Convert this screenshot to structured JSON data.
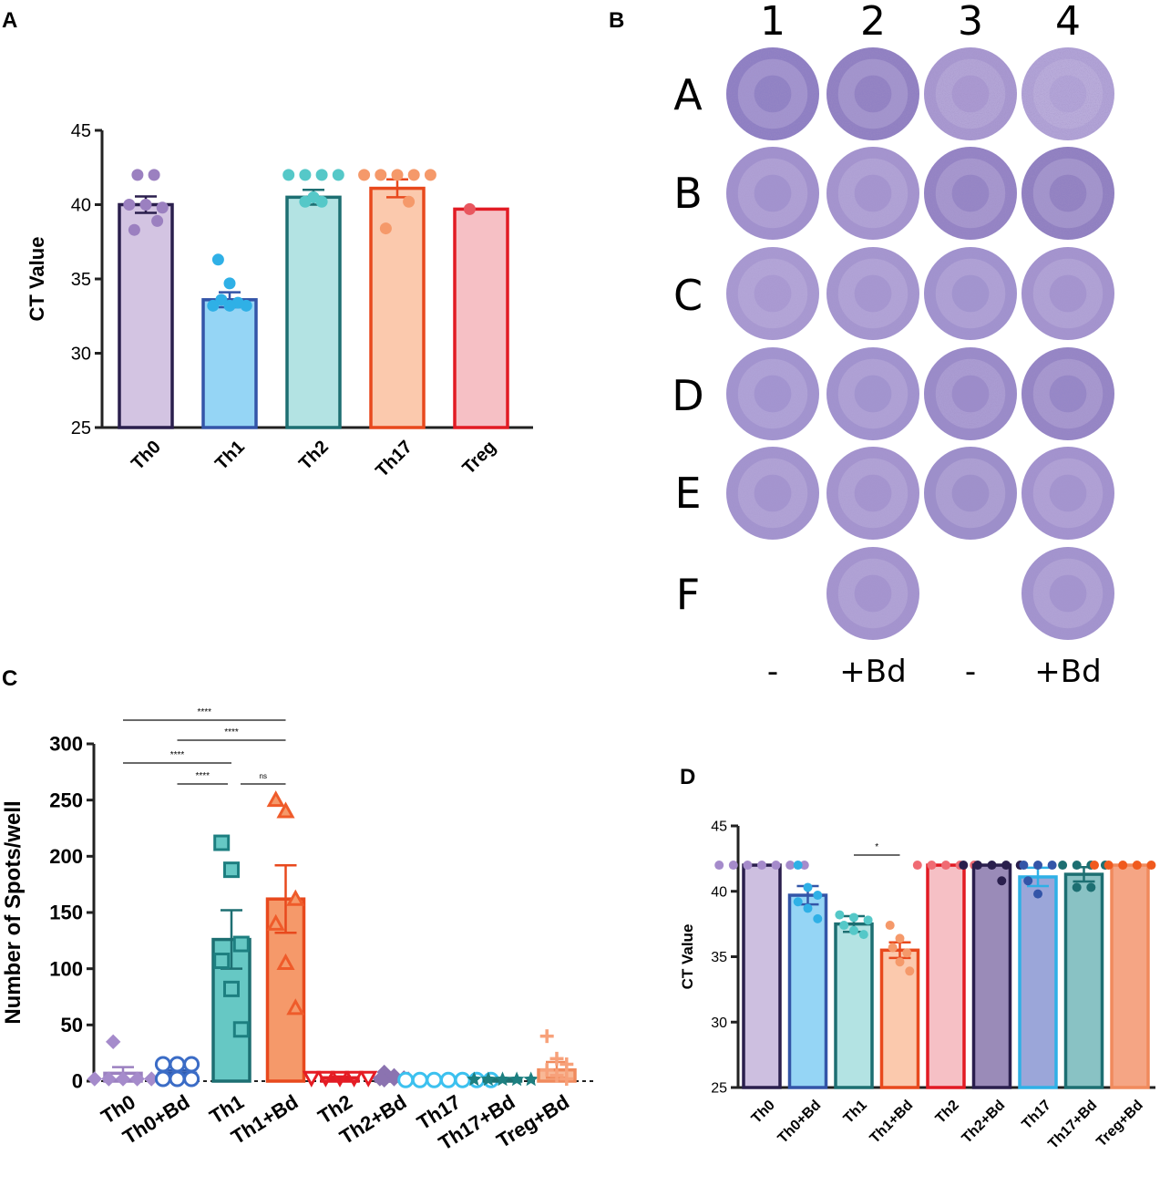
{
  "panels": {
    "A": "A",
    "B": "B",
    "C": "C",
    "D": "D"
  },
  "colors": {
    "axis": "#222222",
    "well_fill": "#9b8cc9"
  },
  "chart_data": [
    {
      "id": "A",
      "type": "bar",
      "ylabel": "CT Value",
      "ylim": [
        25,
        45
      ],
      "yticks": [
        25,
        30,
        35,
        40,
        45
      ],
      "categories": [
        "Th0",
        "Th1",
        "Th2",
        "Th17",
        "Treg"
      ],
      "values": [
        40.0,
        33.6,
        40.5,
        41.1,
        39.7
      ],
      "sem": [
        0.55,
        0.5,
        0.5,
        0.6,
        0
      ],
      "fills": [
        "#d3c4e2",
        "#95d5f5",
        "#b3e3e3",
        "#fbc9ad",
        "#f6c0c5"
      ],
      "strokes": [
        "#2a1f4d",
        "#3355a8",
        "#1d6f72",
        "#e8491d",
        "#e21b24"
      ],
      "point_colors": [
        "#9b80c0",
        "#2fb0e6",
        "#55c8c8",
        "#f5996a",
        "#e8575f"
      ],
      "points": [
        [
          42,
          42,
          40,
          40,
          39.8,
          38.9,
          38.3
        ],
        [
          36.3,
          34.7,
          33.6,
          33.4,
          33.2,
          33.2,
          33.2
        ],
        [
          42,
          42,
          42,
          42,
          40.5,
          40.2,
          40.2
        ],
        [
          42,
          42,
          42,
          42,
          42,
          40.2,
          38.4
        ],
        [
          39.7
        ]
      ]
    },
    {
      "id": "C",
      "type": "bar",
      "ylabel": "Number of Spots/well",
      "ylim": [
        0,
        300
      ],
      "yticks": [
        0,
        50,
        100,
        150,
        200,
        250,
        300
      ],
      "categories": [
        "Th0",
        "Th0+Bd",
        "Th1",
        "Th1+Bd",
        "Th2",
        "Th2+Bd",
        "Th17",
        "Th17+Bd",
        "Treg+Bd"
      ],
      "values": [
        7,
        7,
        126,
        162,
        3,
        3,
        1,
        1.5,
        10
      ],
      "sem": [
        5.5,
        2.5,
        26,
        30,
        1.2,
        1.5,
        0.5,
        0.6,
        7
      ],
      "fills": [
        "#ffffff",
        "#ffffff",
        "#66c8c4",
        "#f5996a",
        "#ffffff",
        "#ffffff",
        "#ffffff",
        "#ffffff",
        "#f8b896"
      ],
      "strokes": [
        "#9b80c0",
        "#2e5ab0",
        "#1d6f72",
        "#e8491d",
        "#e21b24",
        "#6a5a8c",
        "#2fb0e6",
        "#1d7272",
        "#f08a5d"
      ],
      "markers": [
        "diamond",
        "circle",
        "square",
        "triangle",
        "triangle-down",
        "diamond",
        "circle",
        "star",
        "plus"
      ],
      "marker_colors": [
        "#a58bcb",
        "#3b6cc6",
        "#1d7f80",
        "#ef5b2a",
        "#e51c24",
        "#8b73b0",
        "#3cc1ef",
        "#1d7f80",
        "#f7a17a"
      ],
      "points": [
        [
          35,
          2,
          2,
          2,
          2,
          2
        ],
        [
          15,
          15,
          15,
          2,
          2,
          2
        ],
        [
          212,
          188,
          122,
          107,
          82,
          46
        ],
        [
          250,
          240,
          162,
          140,
          105,
          65
        ],
        [
          3,
          3,
          3,
          3,
          3
        ],
        [
          8,
          5,
          3,
          2,
          2,
          2,
          1
        ],
        [
          1,
          1,
          1,
          1,
          1,
          1,
          1
        ],
        [
          1.5,
          1.5,
          1.5,
          1.5,
          1.5
        ],
        [
          40,
          20,
          15,
          10,
          5,
          2
        ]
      ],
      "significance": [
        {
          "from": 0,
          "to": 3,
          "label": "****"
        },
        {
          "from": 1,
          "to": 3,
          "label": "****"
        },
        {
          "from": 0,
          "to": 2,
          "label": "****"
        },
        {
          "from": 1,
          "to": 2,
          "label": "****"
        },
        {
          "from": 2,
          "to": 3,
          "label": "ns"
        }
      ]
    },
    {
      "id": "D",
      "type": "bar",
      "ylabel": "CT Value",
      "ylim": [
        25,
        45
      ],
      "yticks": [
        25,
        30,
        35,
        40,
        45
      ],
      "categories": [
        "Th0",
        "Th0+Bd",
        "Th1",
        "Th1+Bd",
        "Th2",
        "Th2+Bd",
        "Th17",
        "Th17+Bd",
        "Treg+Bd"
      ],
      "values": [
        42,
        39.7,
        37.5,
        35.5,
        42,
        42,
        41.1,
        41.3,
        42
      ],
      "sem": [
        0,
        0.7,
        0.6,
        0.6,
        0,
        0,
        0.7,
        0.55,
        0
      ],
      "fills": [
        "#cdbfe0",
        "#95d5f5",
        "#b3e3e3",
        "#fbc9ad",
        "#f6c0c5",
        "#9a8bb8",
        "#9ba6d9",
        "#89c2c4",
        "#f5a584"
      ],
      "strokes": [
        "#2a1f4d",
        "#3355a8",
        "#1d6f72",
        "#e8491d",
        "#e21b24",
        "#2a1f4d",
        "#2fb0e6",
        "#1d6f72",
        "#f08a5d"
      ],
      "point_colors": [
        "#a58bcb",
        "#2fb0e6",
        "#55c8c8",
        "#f5996a",
        "#f06b73",
        "#2a1f4d",
        "#3355a8",
        "#1d6f72",
        "#f05a1e"
      ],
      "points": [
        [
          42,
          42,
          42,
          42,
          42,
          42,
          42
        ],
        [
          42,
          40.3,
          39.7,
          39.2,
          38.7,
          37.9
        ],
        [
          38.2,
          38,
          37.8,
          37.4,
          37,
          36.7
        ],
        [
          37.4,
          36.4,
          35.7,
          35.3,
          34.6,
          33.9
        ],
        [
          42,
          42,
          42,
          42,
          42
        ],
        [
          42,
          42,
          42,
          42,
          42,
          40.8
        ],
        [
          42,
          42,
          42,
          40.8,
          39.8
        ],
        [
          42,
          42,
          42,
          42,
          40.3,
          40.3
        ],
        [
          42,
          42,
          42,
          42,
          42,
          42
        ]
      ],
      "significance": [
        {
          "from": 2,
          "to": 3,
          "label": "*"
        }
      ]
    }
  ],
  "plate": {
    "columns": [
      "1",
      "2",
      "3",
      "4"
    ],
    "rows": [
      "A",
      "B",
      "C",
      "D",
      "E",
      "F"
    ],
    "footer": [
      "-",
      "+Bd",
      "-",
      "+Bd"
    ],
    "row_F_columns_present": [
      2,
      4
    ]
  }
}
